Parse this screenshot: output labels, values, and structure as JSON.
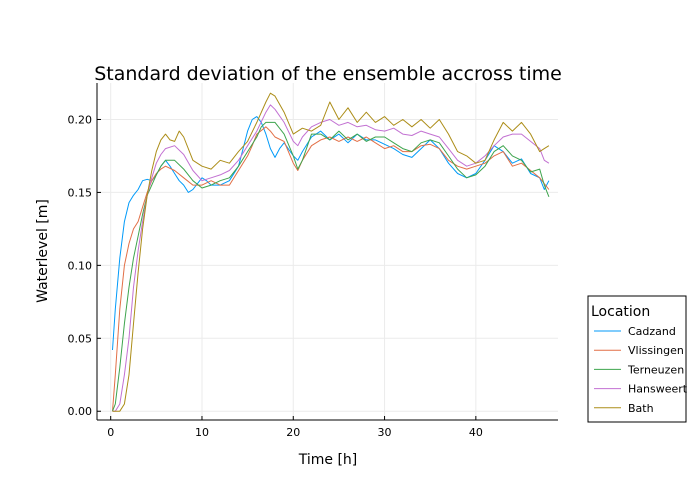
{
  "chart_data": {
    "type": "line",
    "title": "Standard deviation of the ensemble accross time",
    "xlabel": "Time [h]",
    "ylabel": "Waterlevel [m]",
    "xlim": [
      -1.5,
      49
    ],
    "ylim": [
      -0.006,
      0.225
    ],
    "xticks": [
      0,
      10,
      20,
      30,
      40
    ],
    "yticks": [
      0.0,
      0.05,
      0.1,
      0.15,
      0.2
    ],
    "ytick_labels": [
      "0.00",
      "0.05",
      "0.10",
      "0.15",
      "0.20"
    ],
    "grid": true,
    "legend": {
      "title": "Location",
      "position": "outside-right-bottom"
    },
    "series": [
      {
        "name": "Cadzand",
        "color": "#009af9",
        "points": [
          [
            0.2,
            0.042
          ],
          [
            0.5,
            0.07
          ],
          [
            1,
            0.105
          ],
          [
            1.5,
            0.13
          ],
          [
            2,
            0.143
          ],
          [
            2.5,
            0.148
          ],
          [
            3,
            0.152
          ],
          [
            3.5,
            0.158
          ],
          [
            4,
            0.159
          ],
          [
            4.5,
            0.158
          ],
          [
            5,
            0.162
          ],
          [
            5.5,
            0.168
          ],
          [
            6,
            0.172
          ],
          [
            6.5,
            0.168
          ],
          [
            7,
            0.163
          ],
          [
            7.5,
            0.158
          ],
          [
            8,
            0.155
          ],
          [
            8.5,
            0.15
          ],
          [
            9,
            0.152
          ],
          [
            9.5,
            0.156
          ],
          [
            10,
            0.16
          ],
          [
            10.5,
            0.158
          ],
          [
            11,
            0.155
          ],
          [
            12,
            0.155
          ],
          [
            13,
            0.158
          ],
          [
            14,
            0.168
          ],
          [
            14.5,
            0.18
          ],
          [
            15,
            0.192
          ],
          [
            15.5,
            0.2
          ],
          [
            16,
            0.202
          ],
          [
            16.5,
            0.198
          ],
          [
            17,
            0.19
          ],
          [
            17.5,
            0.18
          ],
          [
            18,
            0.174
          ],
          [
            18.5,
            0.18
          ],
          [
            19,
            0.184
          ],
          [
            20,
            0.175
          ],
          [
            20.5,
            0.172
          ],
          [
            21,
            0.178
          ],
          [
            22,
            0.188
          ],
          [
            23,
            0.192
          ],
          [
            24,
            0.186
          ],
          [
            25,
            0.19
          ],
          [
            26,
            0.184
          ],
          [
            27,
            0.19
          ],
          [
            28,
            0.186
          ],
          [
            29,
            0.186
          ],
          [
            30,
            0.183
          ],
          [
            31,
            0.18
          ],
          [
            32,
            0.176
          ],
          [
            33,
            0.174
          ],
          [
            34,
            0.18
          ],
          [
            35,
            0.186
          ],
          [
            36,
            0.18
          ],
          [
            37,
            0.17
          ],
          [
            38,
            0.163
          ],
          [
            39,
            0.16
          ],
          [
            40,
            0.163
          ],
          [
            41,
            0.172
          ],
          [
            42,
            0.182
          ],
          [
            43,
            0.178
          ],
          [
            44,
            0.17
          ],
          [
            45,
            0.173
          ],
          [
            46,
            0.163
          ],
          [
            47,
            0.16
          ],
          [
            47.5,
            0.152
          ],
          [
            48,
            0.158
          ]
        ]
      },
      {
        "name": "Vlissingen",
        "color": "#e26f46",
        "points": [
          [
            0.2,
            0.0
          ],
          [
            0.5,
            0.025
          ],
          [
            1,
            0.07
          ],
          [
            1.5,
            0.1
          ],
          [
            2,
            0.115
          ],
          [
            2.5,
            0.125
          ],
          [
            3,
            0.13
          ],
          [
            3.5,
            0.14
          ],
          [
            4,
            0.15
          ],
          [
            4.5,
            0.158
          ],
          [
            5,
            0.163
          ],
          [
            5.5,
            0.166
          ],
          [
            6,
            0.168
          ],
          [
            7,
            0.165
          ],
          [
            8,
            0.16
          ],
          [
            9,
            0.155
          ],
          [
            10,
            0.155
          ],
          [
            11,
            0.158
          ],
          [
            12,
            0.155
          ],
          [
            13,
            0.155
          ],
          [
            14,
            0.165
          ],
          [
            15,
            0.175
          ],
          [
            15.5,
            0.182
          ],
          [
            16,
            0.19
          ],
          [
            17,
            0.195
          ],
          [
            17.5,
            0.192
          ],
          [
            18,
            0.188
          ],
          [
            19,
            0.185
          ],
          [
            20,
            0.17
          ],
          [
            20.5,
            0.165
          ],
          [
            21,
            0.172
          ],
          [
            22,
            0.182
          ],
          [
            23,
            0.186
          ],
          [
            24,
            0.188
          ],
          [
            25,
            0.185
          ],
          [
            26,
            0.188
          ],
          [
            27,
            0.185
          ],
          [
            28,
            0.188
          ],
          [
            29,
            0.184
          ],
          [
            30,
            0.18
          ],
          [
            31,
            0.182
          ],
          [
            32,
            0.178
          ],
          [
            33,
            0.178
          ],
          [
            34,
            0.182
          ],
          [
            35,
            0.183
          ],
          [
            36,
            0.18
          ],
          [
            37,
            0.172
          ],
          [
            38,
            0.168
          ],
          [
            39,
            0.166
          ],
          [
            40,
            0.168
          ],
          [
            41,
            0.17
          ],
          [
            42,
            0.175
          ],
          [
            43,
            0.178
          ],
          [
            44,
            0.168
          ],
          [
            45,
            0.17
          ],
          [
            46,
            0.165
          ],
          [
            47,
            0.16
          ],
          [
            47.5,
            0.156
          ],
          [
            48,
            0.152
          ]
        ]
      },
      {
        "name": "Terneuzen",
        "color": "#3da44d",
        "points": [
          [
            0.2,
            0.0
          ],
          [
            0.5,
            0.005
          ],
          [
            1,
            0.03
          ],
          [
            1.5,
            0.06
          ],
          [
            2,
            0.085
          ],
          [
            2.5,
            0.105
          ],
          [
            3,
            0.12
          ],
          [
            3.5,
            0.135
          ],
          [
            4,
            0.148
          ],
          [
            4.5,
            0.155
          ],
          [
            5,
            0.162
          ],
          [
            5.5,
            0.168
          ],
          [
            6,
            0.172
          ],
          [
            7,
            0.172
          ],
          [
            8,
            0.166
          ],
          [
            9,
            0.158
          ],
          [
            10,
            0.153
          ],
          [
            11,
            0.155
          ],
          [
            12,
            0.158
          ],
          [
            13,
            0.16
          ],
          [
            14,
            0.168
          ],
          [
            15,
            0.178
          ],
          [
            16,
            0.188
          ],
          [
            16.5,
            0.195
          ],
          [
            17,
            0.198
          ],
          [
            18,
            0.198
          ],
          [
            19,
            0.19
          ],
          [
            20,
            0.175
          ],
          [
            20.5,
            0.166
          ],
          [
            21,
            0.172
          ],
          [
            22,
            0.19
          ],
          [
            23,
            0.19
          ],
          [
            24,
            0.186
          ],
          [
            25,
            0.192
          ],
          [
            26,
            0.186
          ],
          [
            27,
            0.19
          ],
          [
            28,
            0.185
          ],
          [
            29,
            0.188
          ],
          [
            30,
            0.188
          ],
          [
            31,
            0.184
          ],
          [
            32,
            0.18
          ],
          [
            33,
            0.178
          ],
          [
            34,
            0.184
          ],
          [
            35,
            0.186
          ],
          [
            36,
            0.184
          ],
          [
            37,
            0.175
          ],
          [
            38,
            0.166
          ],
          [
            39,
            0.16
          ],
          [
            40,
            0.162
          ],
          [
            41,
            0.168
          ],
          [
            42,
            0.178
          ],
          [
            43,
            0.182
          ],
          [
            44,
            0.175
          ],
          [
            45,
            0.172
          ],
          [
            46,
            0.164
          ],
          [
            47,
            0.166
          ],
          [
            47.5,
            0.155
          ],
          [
            48,
            0.147
          ]
        ]
      },
      {
        "name": "Hansweert",
        "color": "#c271d2",
        "points": [
          [
            0.2,
            0.0
          ],
          [
            0.5,
            0.0
          ],
          [
            1,
            0.005
          ],
          [
            1.5,
            0.025
          ],
          [
            2,
            0.05
          ],
          [
            2.5,
            0.085
          ],
          [
            3,
            0.11
          ],
          [
            3.5,
            0.13
          ],
          [
            4,
            0.148
          ],
          [
            4.5,
            0.16
          ],
          [
            5,
            0.17
          ],
          [
            5.5,
            0.176
          ],
          [
            6,
            0.18
          ],
          [
            7,
            0.182
          ],
          [
            8,
            0.176
          ],
          [
            9,
            0.165
          ],
          [
            10,
            0.158
          ],
          [
            11,
            0.16
          ],
          [
            12,
            0.162
          ],
          [
            13,
            0.165
          ],
          [
            14,
            0.172
          ],
          [
            15,
            0.182
          ],
          [
            16,
            0.192
          ],
          [
            17,
            0.205
          ],
          [
            17.5,
            0.21
          ],
          [
            18,
            0.207
          ],
          [
            19,
            0.198
          ],
          [
            20,
            0.185
          ],
          [
            20.5,
            0.182
          ],
          [
            21,
            0.188
          ],
          [
            22,
            0.195
          ],
          [
            23,
            0.198
          ],
          [
            24,
            0.2
          ],
          [
            25,
            0.196
          ],
          [
            26,
            0.198
          ],
          [
            27,
            0.195
          ],
          [
            28,
            0.196
          ],
          [
            29,
            0.193
          ],
          [
            30,
            0.192
          ],
          [
            31,
            0.194
          ],
          [
            32,
            0.19
          ],
          [
            33,
            0.189
          ],
          [
            34,
            0.192
          ],
          [
            35,
            0.19
          ],
          [
            36,
            0.188
          ],
          [
            37,
            0.18
          ],
          [
            38,
            0.172
          ],
          [
            39,
            0.168
          ],
          [
            40,
            0.17
          ],
          [
            41,
            0.175
          ],
          [
            42,
            0.182
          ],
          [
            43,
            0.188
          ],
          [
            44,
            0.19
          ],
          [
            45,
            0.19
          ],
          [
            46,
            0.185
          ],
          [
            47,
            0.18
          ],
          [
            47.5,
            0.172
          ],
          [
            48,
            0.17
          ]
        ]
      },
      {
        "name": "Bath",
        "color": "#ac8d18",
        "points": [
          [
            0.2,
            0.0
          ],
          [
            0.5,
            0.0
          ],
          [
            1,
            0.0
          ],
          [
            1.5,
            0.005
          ],
          [
            2,
            0.025
          ],
          [
            2.5,
            0.06
          ],
          [
            3,
            0.095
          ],
          [
            3.5,
            0.125
          ],
          [
            4,
            0.148
          ],
          [
            4.5,
            0.165
          ],
          [
            5,
            0.178
          ],
          [
            5.5,
            0.186
          ],
          [
            6,
            0.19
          ],
          [
            6.5,
            0.186
          ],
          [
            7,
            0.185
          ],
          [
            7.5,
            0.192
          ],
          [
            8,
            0.188
          ],
          [
            9,
            0.172
          ],
          [
            10,
            0.168
          ],
          [
            11,
            0.166
          ],
          [
            12,
            0.172
          ],
          [
            13,
            0.17
          ],
          [
            14,
            0.178
          ],
          [
            15,
            0.185
          ],
          [
            16,
            0.198
          ],
          [
            17,
            0.212
          ],
          [
            17.5,
            0.218
          ],
          [
            18,
            0.216
          ],
          [
            19,
            0.205
          ],
          [
            20,
            0.19
          ],
          [
            21,
            0.194
          ],
          [
            22,
            0.192
          ],
          [
            23,
            0.196
          ],
          [
            24,
            0.212
          ],
          [
            25,
            0.2
          ],
          [
            26,
            0.208
          ],
          [
            27,
            0.198
          ],
          [
            28,
            0.205
          ],
          [
            29,
            0.198
          ],
          [
            30,
            0.202
          ],
          [
            31,
            0.196
          ],
          [
            32,
            0.2
          ],
          [
            33,
            0.195
          ],
          [
            34,
            0.2
          ],
          [
            35,
            0.194
          ],
          [
            36,
            0.2
          ],
          [
            37,
            0.19
          ],
          [
            38,
            0.178
          ],
          [
            39,
            0.175
          ],
          [
            40,
            0.17
          ],
          [
            41,
            0.172
          ],
          [
            42,
            0.186
          ],
          [
            43,
            0.198
          ],
          [
            44,
            0.192
          ],
          [
            45,
            0.198
          ],
          [
            46,
            0.19
          ],
          [
            47,
            0.178
          ],
          [
            47.5,
            0.18
          ],
          [
            48,
            0.182
          ]
        ]
      }
    ]
  }
}
